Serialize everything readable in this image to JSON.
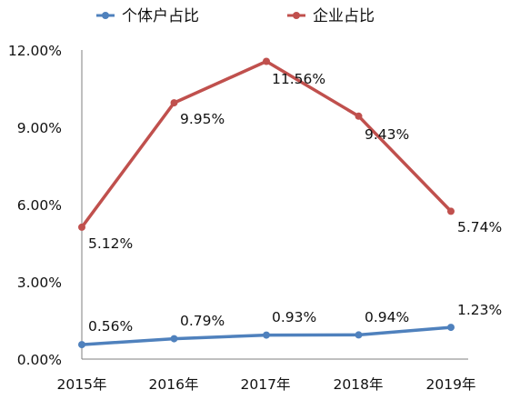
{
  "chart_data": {
    "type": "line",
    "title": "",
    "xlabel": "",
    "ylabel": "",
    "categories": [
      "2015年",
      "2016年",
      "2017年",
      "2018年",
      "2019年"
    ],
    "ylim": [
      0,
      12
    ],
    "y_ticks": [
      "0.00%",
      "3.00%",
      "6.00%",
      "9.00%",
      "12.00%"
    ],
    "grid": false,
    "legend_position": "top",
    "series": [
      {
        "name": "个体户占比",
        "color": "#4f81bd",
        "values": [
          0.56,
          0.79,
          0.93,
          0.94,
          1.23
        ],
        "labels": [
          "0.56%",
          "0.79%",
          "0.93%",
          "0.94%",
          "1.23%"
        ]
      },
      {
        "name": "企业占比",
        "color": "#c0504d",
        "values": [
          5.12,
          9.95,
          11.56,
          9.43,
          5.74
        ],
        "labels": [
          "5.12%",
          "9.95%",
          "11.56%",
          "9.43%",
          "5.74%"
        ]
      }
    ]
  }
}
